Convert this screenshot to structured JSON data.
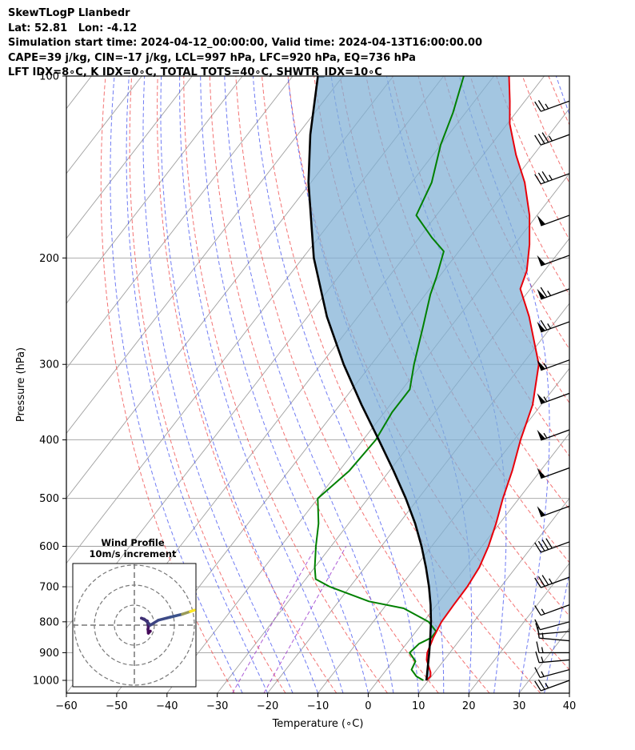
{
  "header": {
    "line1": "SkewTLogP Llanbedr",
    "line2": "Lat: 52.81   Lon: -4.12",
    "line3": "Simulation start time: 2024-04-12_00:00:00, Valid time: 2024-04-13T16:00:00.00",
    "line4": "CAPE=39 j/kg, CIN=-17 j/kg, LCL=997 hPa, LFC=920 hPa, EQ=736 hPa",
    "line5": "LFT IDX=8∘C, K IDX=0∘C, TOTAL TOTS=40∘C, SHWTR_IDX=10∘C"
  },
  "chart_data": {
    "type": "skewt-logp",
    "xlabel": "Temperature (∘C)",
    "ylabel": "Pressure (hPa)",
    "xlim": [
      -60,
      40
    ],
    "plim": [
      1050,
      100
    ],
    "y_scale": "log",
    "grid": true,
    "x_ticks": [
      -60,
      -50,
      -40,
      -30,
      -20,
      -10,
      0,
      10,
      20,
      30,
      40
    ],
    "x_tick_labels": [
      "−60",
      "−50",
      "−40",
      "−30",
      "−20",
      "−10",
      "0",
      "10",
      "20",
      "30",
      "40"
    ],
    "p_ticks": [
      1000,
      900,
      800,
      700,
      600,
      500,
      400,
      300,
      200,
      100
    ],
    "p_tick_labels": [
      "1000",
      "900",
      "800",
      "700",
      "600",
      "500",
      "400",
      "300",
      "200",
      "100"
    ],
    "colors": {
      "temperature": "#e8000b",
      "dewpoint": "#008000",
      "parcel": "#000000",
      "cape_fill": "#7fb0d5",
      "dry_adiabat": "#f05050",
      "moist_adiabat": "#4050f0",
      "mixing_ratio": "#9933cc",
      "isotherm": "#a0a0a0"
    },
    "series": [
      {
        "role": "temperature",
        "points": [
          [
            1000,
            9.6
          ],
          [
            985,
            9.8
          ],
          [
            970,
            9.2
          ],
          [
            950,
            8.0
          ],
          [
            925,
            6.5
          ],
          [
            900,
            5.5
          ],
          [
            850,
            4.4
          ],
          [
            800,
            3.6
          ],
          [
            750,
            3.4
          ],
          [
            700,
            3.3
          ],
          [
            650,
            2.7
          ],
          [
            600,
            1.3
          ],
          [
            550,
            -0.7
          ],
          [
            500,
            -3.2
          ],
          [
            450,
            -5.6
          ],
          [
            400,
            -8.7
          ],
          [
            350,
            -11.7
          ],
          [
            300,
            -16.7
          ],
          [
            250,
            -26.0
          ],
          [
            225,
            -32.0
          ],
          [
            210,
            -33.5
          ],
          [
            190,
            -37.0
          ],
          [
            170,
            -41.5
          ],
          [
            150,
            -47.5
          ],
          [
            135,
            -53.5
          ],
          [
            120,
            -59.5
          ],
          [
            110,
            -63.0
          ],
          [
            100,
            -67.0
          ]
        ]
      },
      {
        "role": "dewpoint",
        "points": [
          [
            1000,
            9.0
          ],
          [
            985,
            7.0
          ],
          [
            960,
            5.0
          ],
          [
            930,
            4.5
          ],
          [
            900,
            2.0
          ],
          [
            870,
            2.5
          ],
          [
            850,
            4.0
          ],
          [
            830,
            4.0
          ],
          [
            800,
            1.0
          ],
          [
            760,
            -6.0
          ],
          [
            740,
            -14.0
          ],
          [
            700,
            -24.0
          ],
          [
            680,
            -28.0
          ],
          [
            650,
            -30.0
          ],
          [
            600,
            -33.0
          ],
          [
            550,
            -36.0
          ],
          [
            500,
            -40.0
          ],
          [
            450,
            -38.0
          ],
          [
            400,
            -37.5
          ],
          [
            360,
            -38.5
          ],
          [
            330,
            -38.5
          ],
          [
            300,
            -41.5
          ],
          [
            260,
            -45.5
          ],
          [
            230,
            -49.0
          ],
          [
            215,
            -50.5
          ],
          [
            195,
            -53.0
          ],
          [
            185,
            -57.5
          ],
          [
            170,
            -64.0
          ],
          [
            150,
            -66.0
          ],
          [
            130,
            -70.0
          ],
          [
            115,
            -72.5
          ],
          [
            100,
            -76.0
          ]
        ]
      },
      {
        "role": "parcel",
        "points": [
          [
            1000,
            9.6
          ],
          [
            950,
            7.8
          ],
          [
            900,
            5.9
          ],
          [
            850,
            3.8
          ],
          [
            800,
            1.5
          ],
          [
            750,
            -1.2
          ],
          [
            700,
            -4.3
          ],
          [
            650,
            -7.9
          ],
          [
            600,
            -12.0
          ],
          [
            550,
            -16.8
          ],
          [
            500,
            -22.5
          ],
          [
            450,
            -29.2
          ],
          [
            400,
            -36.9
          ],
          [
            350,
            -45.7
          ],
          [
            300,
            -55.5
          ],
          [
            250,
            -66.2
          ],
          [
            200,
            -77.8
          ],
          [
            150,
            -90.5
          ],
          [
            125,
            -97.5
          ],
          [
            100,
            -105.0
          ]
        ]
      }
    ],
    "wind_barbs": [
      {
        "p": 1000,
        "dir": 250,
        "speed": 25
      },
      {
        "p": 960,
        "dir": 255,
        "speed": 15
      },
      {
        "p": 925,
        "dir": 265,
        "speed": 15
      },
      {
        "p": 900,
        "dir": 270,
        "speed": 15
      },
      {
        "p": 860,
        "dir": 275,
        "speed": 15
      },
      {
        "p": 830,
        "dir": 265,
        "speed": 10
      },
      {
        "p": 800,
        "dir": 255,
        "speed": 10
      },
      {
        "p": 750,
        "dir": 250,
        "speed": 15
      },
      {
        "p": 675,
        "dir": 250,
        "speed": 35
      },
      {
        "p": 590,
        "dir": 250,
        "speed": 40
      },
      {
        "p": 515,
        "dir": 250,
        "speed": 50
      },
      {
        "p": 445,
        "dir": 250,
        "speed": 50
      },
      {
        "p": 385,
        "dir": 250,
        "speed": 55
      },
      {
        "p": 335,
        "dir": 250,
        "speed": 55
      },
      {
        "p": 295,
        "dir": 250,
        "speed": 55
      },
      {
        "p": 255,
        "dir": 250,
        "speed": 65
      },
      {
        "p": 225,
        "dir": 250,
        "speed": 65
      },
      {
        "p": 198,
        "dir": 250,
        "speed": 50
      },
      {
        "p": 170,
        "dir": 250,
        "speed": 50
      },
      {
        "p": 145,
        "dir": 250,
        "speed": 35
      },
      {
        "p": 125,
        "dir": 250,
        "speed": 35
      },
      {
        "p": 110,
        "dir": 250,
        "speed": 25
      }
    ],
    "hodograph": {
      "title_line1": "Wind Profile",
      "title_line2": "10m/s increment",
      "ring_radii_ms": [
        10,
        20,
        30
      ],
      "track_uv": [
        [
          8.0,
          -3.0
        ],
        [
          7.0,
          -4.0
        ],
        [
          6.8,
          -2.0
        ],
        [
          7.0,
          -1.0
        ],
        [
          6.5,
          2.0
        ],
        [
          4.5,
          3.0
        ],
        [
          3.5,
          3.5
        ],
        [
          5.0,
          3.0
        ],
        [
          7.0,
          1.0
        ],
        [
          8.0,
          0.0
        ],
        [
          12.0,
          2.5
        ],
        [
          18.0,
          4.0
        ],
        [
          24.0,
          5.5
        ],
        [
          28.0,
          6.8
        ],
        [
          30.0,
          7.5
        ]
      ]
    }
  }
}
